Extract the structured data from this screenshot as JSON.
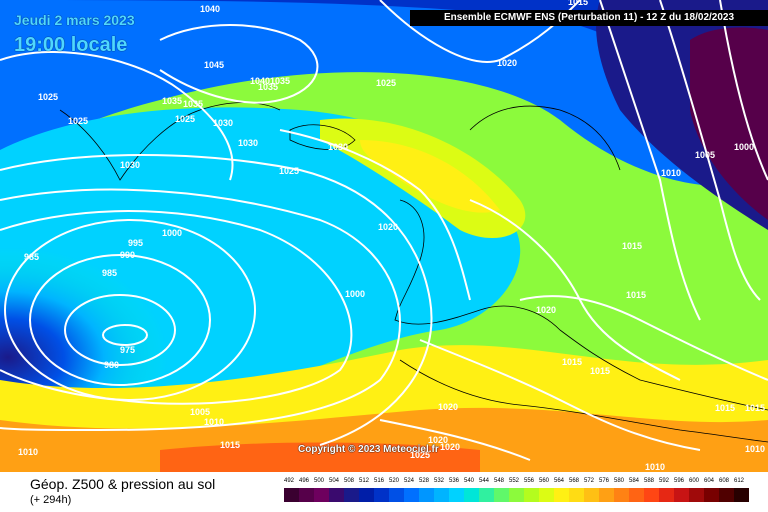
{
  "header": {
    "banner": "Ensemble ECMWF ENS  (Perturbation 11)  -  12 Z du 18/02/2023"
  },
  "date": {
    "line1": "Jeudi 2 mars 2023",
    "line2": "19:00 locale"
  },
  "copyright": "Copyright © 2023 Meteociel.fr",
  "footer": {
    "title": "Géop. Z500 & pression au sol",
    "subtitle": "(+ 294h)"
  },
  "scale": {
    "values": [
      "492",
      "496",
      "500",
      "504",
      "508",
      "512",
      "516",
      "520",
      "524",
      "528",
      "532",
      "536",
      "540",
      "544",
      "548",
      "552",
      "556",
      "560",
      "564",
      "568",
      "572",
      "576",
      "580",
      "584",
      "588",
      "592",
      "596",
      "600",
      "604",
      "608",
      "612"
    ],
    "colors": [
      "#3a0030",
      "#56004a",
      "#6e005e",
      "#3a0a6e",
      "#1a1a8a",
      "#001ea8",
      "#0032c8",
      "#0050e6",
      "#0070ff",
      "#0096ff",
      "#00b4ff",
      "#00d2ff",
      "#00e6d8",
      "#30f0a0",
      "#60f86a",
      "#8cfa3c",
      "#b4fc1e",
      "#dcfc14",
      "#fff014",
      "#ffdc14",
      "#ffc014",
      "#ffa014",
      "#ff8214",
      "#ff6414",
      "#ff4614",
      "#e62814",
      "#c81414",
      "#a00a0a",
      "#780000",
      "#500000",
      "#280000"
    ]
  },
  "isobars": [
    "1040",
    "1045",
    "1040",
    "1035",
    "1035",
    "1025",
    "1025",
    "1035",
    "1035",
    "1025",
    "1030",
    "1030",
    "1030",
    "1030",
    "1025",
    "1020",
    "1025",
    "1020",
    "1010",
    "1005",
    "1000",
    "995",
    "990",
    "1000",
    "985",
    "985",
    "975",
    "980",
    "1000",
    "1020",
    "1015",
    "1015",
    "1015",
    "1020",
    "1005",
    "1010",
    "1015",
    "1010",
    "1020",
    "1020",
    "1015",
    "1015",
    "1025",
    "1010",
    "1015",
    "1010",
    "1015"
  ]
}
